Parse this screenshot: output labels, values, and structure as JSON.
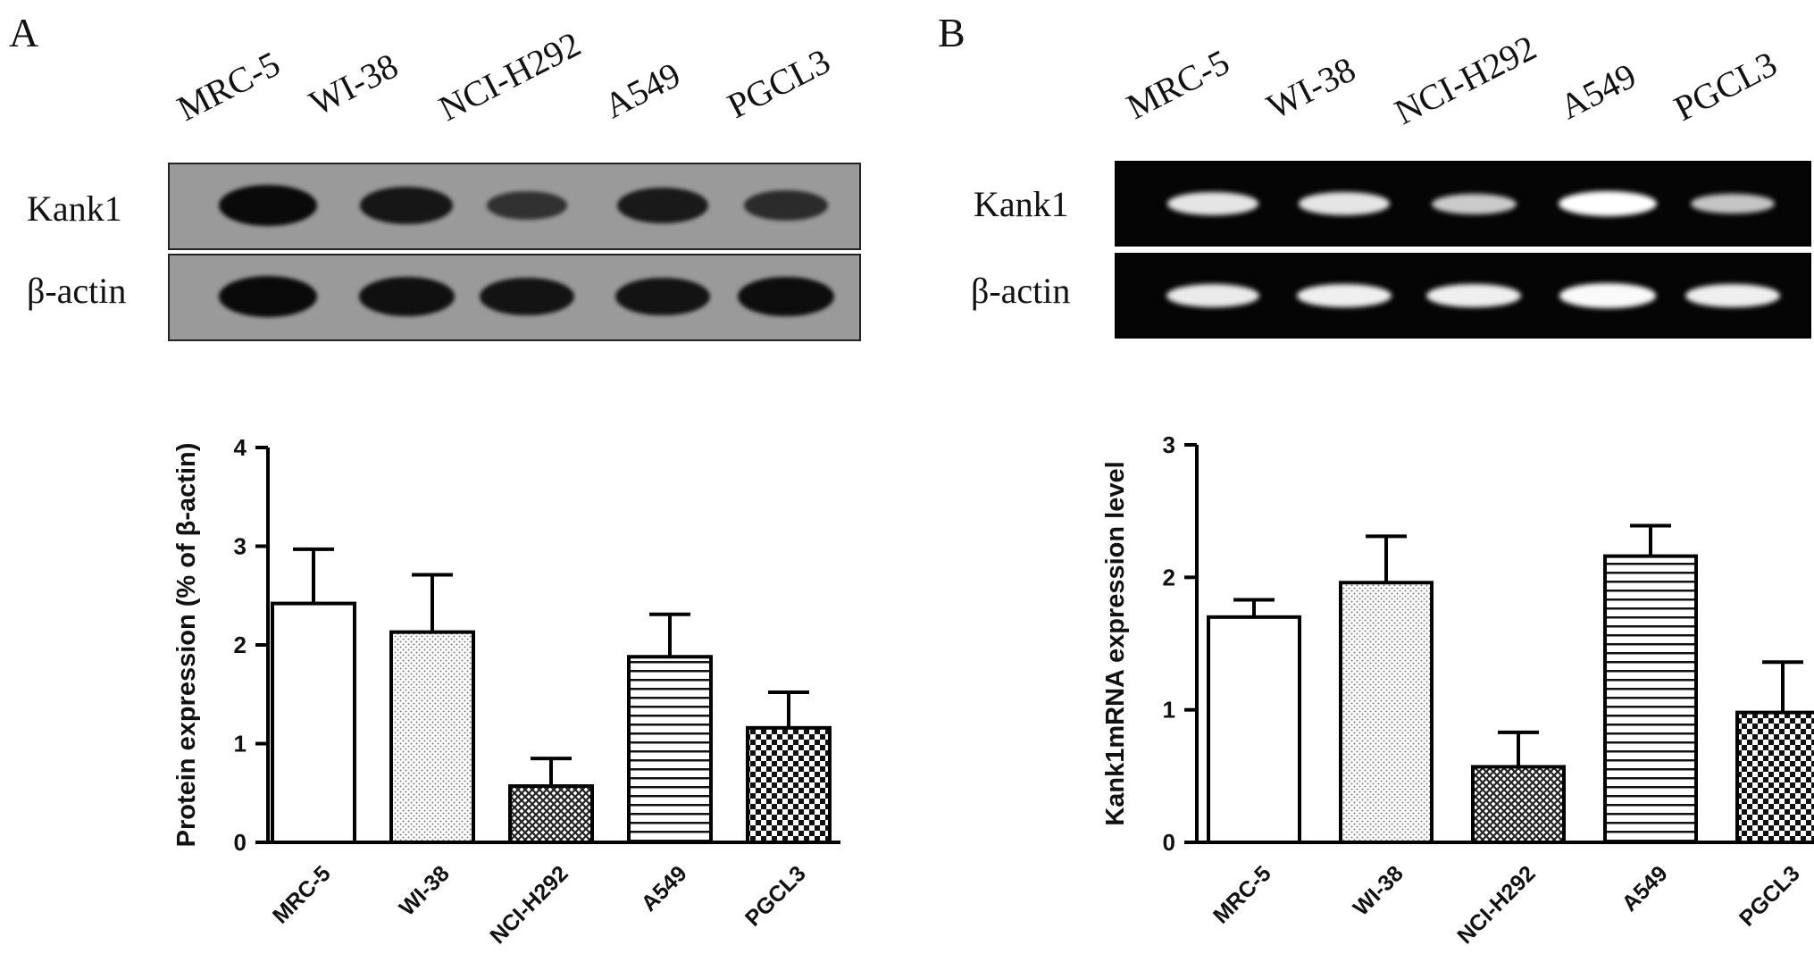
{
  "panels": [
    {
      "letter": "A",
      "lanes": [
        "MRC-5",
        "WI-38",
        "NCI-H292",
        "A549",
        "PGCL3"
      ],
      "blot_rows": [
        "Kank1",
        "β-actin"
      ],
      "blot_type": "western",
      "band_intensity": {
        "Kank1": [
          1.0,
          0.8,
          0.35,
          0.75,
          0.45
        ],
        "β-actin": [
          1.0,
          0.9,
          0.85,
          0.85,
          0.95
        ]
      }
    },
    {
      "letter": "B",
      "lanes": [
        "MRC-5",
        "WI-38",
        "NCI-H292",
        "A549",
        "PGCL3"
      ],
      "blot_rows": [
        "Kank1",
        "β-actin"
      ],
      "blot_type": "gel",
      "band_intensity": {
        "Kank1": [
          0.75,
          0.75,
          0.5,
          1.0,
          0.45
        ],
        "β-actin": [
          0.8,
          0.85,
          0.85,
          0.95,
          0.85
        ]
      }
    }
  ],
  "chart_data": [
    {
      "type": "bar",
      "categories": [
        "MRC-5",
        "WI-38",
        "NCI-H292",
        "A549",
        "PGCL3"
      ],
      "values": [
        2.42,
        2.13,
        0.57,
        1.88,
        1.16
      ],
      "errors": [
        0.55,
        0.58,
        0.28,
        0.43,
        0.36
      ],
      "patterns": [
        "blank",
        "dots",
        "crosshatch",
        "horizontal-lines",
        "checker"
      ],
      "ylabel": "Protein expression (% of β-actin)",
      "ylim": [
        0,
        4
      ],
      "yticks": [
        0,
        1,
        2,
        3,
        4
      ]
    },
    {
      "type": "bar",
      "categories": [
        "MRC-5",
        "WI-38",
        "NCI-H292",
        "A549",
        "PGCL3"
      ],
      "values": [
        1.7,
        1.96,
        0.57,
        2.16,
        0.98
      ],
      "errors": [
        0.13,
        0.35,
        0.26,
        0.23,
        0.38
      ],
      "patterns": [
        "blank",
        "dots",
        "crosshatch",
        "horizontal-lines",
        "checker"
      ],
      "ylabel": "Kank1mRNA expression level",
      "ylim": [
        0,
        3
      ],
      "yticks": [
        0,
        1,
        2,
        3
      ]
    }
  ]
}
